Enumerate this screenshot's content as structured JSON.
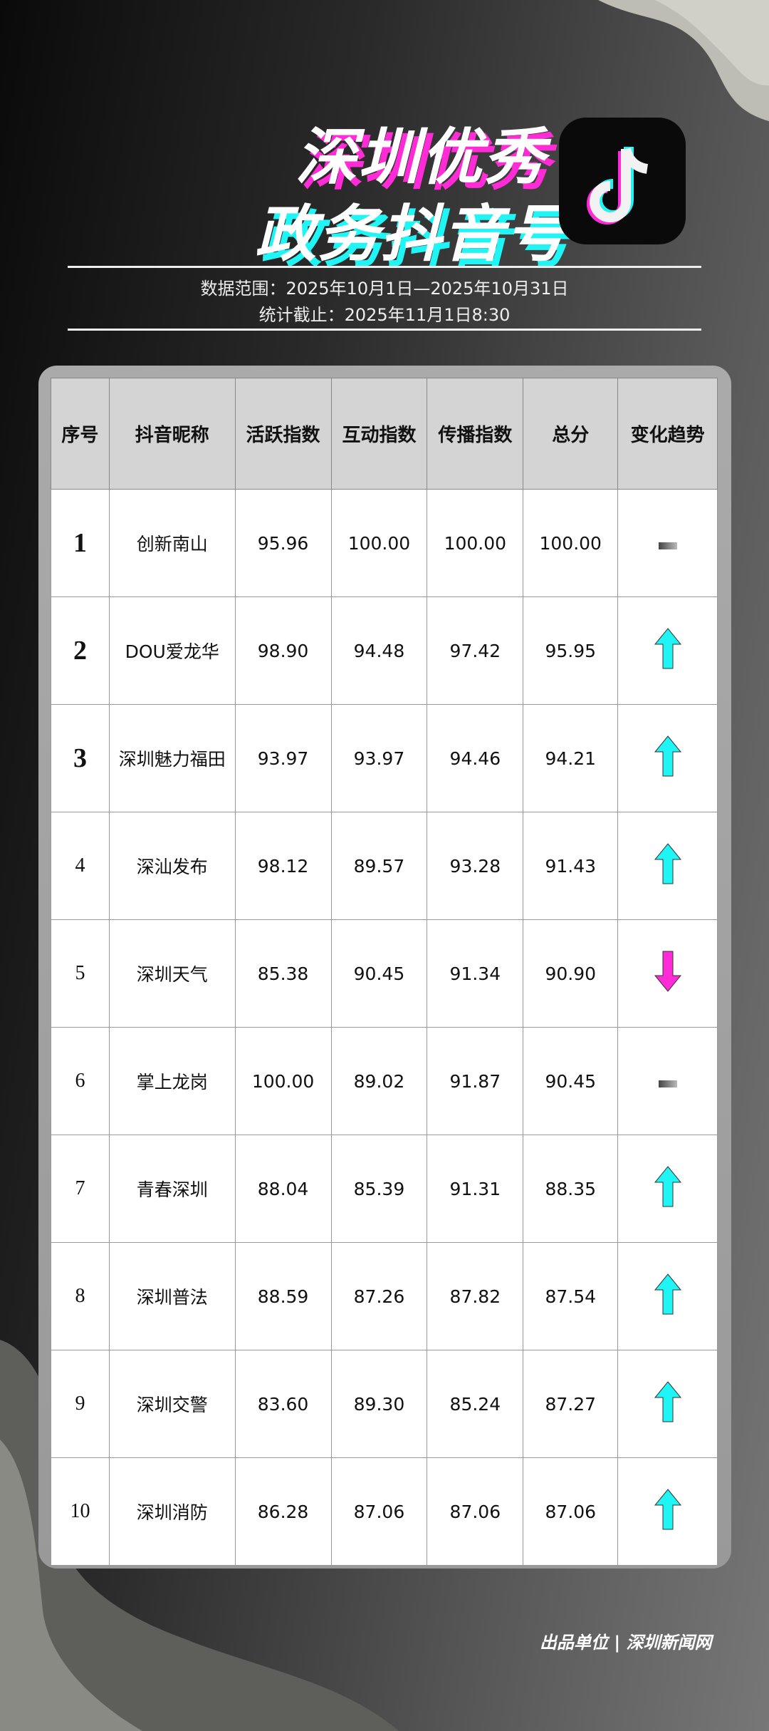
{
  "title": {
    "line1": "深圳优秀",
    "line2": "政务抖音号"
  },
  "logo": {
    "icon": "douyin-music-note-icon"
  },
  "info": {
    "range": "数据范围：2025年10月1日—2025年10月31日",
    "cutoff": "统计截止：2025年11月1日8:30"
  },
  "table": {
    "headers": [
      "序号",
      "抖音昵称",
      "活跃指数",
      "互动指数",
      "传播指数",
      "总分",
      "变化趋势"
    ],
    "rows": [
      {
        "rank": "1",
        "name": "创新南山",
        "active": "95.96",
        "interact": "100.00",
        "spread": "100.00",
        "total": "100.00",
        "trend": "flat"
      },
      {
        "rank": "2",
        "name": "DOU爱龙华",
        "active": "98.90",
        "interact": "94.48",
        "spread": "97.42",
        "total": "95.95",
        "trend": "up"
      },
      {
        "rank": "3",
        "name": "深圳魅力福田",
        "active": "93.97",
        "interact": "93.97",
        "spread": "94.46",
        "total": "94.21",
        "trend": "up"
      },
      {
        "rank": "4",
        "name": "深汕发布",
        "active": "98.12",
        "interact": "89.57",
        "spread": "93.28",
        "total": "91.43",
        "trend": "up"
      },
      {
        "rank": "5",
        "name": "深圳天气",
        "active": "85.38",
        "interact": "90.45",
        "spread": "91.34",
        "total": "90.90",
        "trend": "down"
      },
      {
        "rank": "6",
        "name": "掌上龙岗",
        "active": "100.00",
        "interact": "89.02",
        "spread": "91.87",
        "total": "90.45",
        "trend": "flat"
      },
      {
        "rank": "7",
        "name": "青春深圳",
        "active": "88.04",
        "interact": "85.39",
        "spread": "91.31",
        "total": "88.35",
        "trend": "up"
      },
      {
        "rank": "8",
        "name": "深圳普法",
        "active": "88.59",
        "interact": "87.26",
        "spread": "87.82",
        "total": "87.54",
        "trend": "up"
      },
      {
        "rank": "9",
        "name": "深圳交警",
        "active": "83.60",
        "interact": "89.30",
        "spread": "85.24",
        "total": "87.27",
        "trend": "up"
      },
      {
        "rank": "10",
        "name": "深圳消防",
        "active": "86.28",
        "interact": "87.06",
        "spread": "87.06",
        "total": "87.06",
        "trend": "up"
      }
    ]
  },
  "colors": {
    "up": "#1ff5f5",
    "down": "#ff2bd6",
    "flat": "#777777"
  },
  "footer": "出品单位 | 深圳新闻网"
}
